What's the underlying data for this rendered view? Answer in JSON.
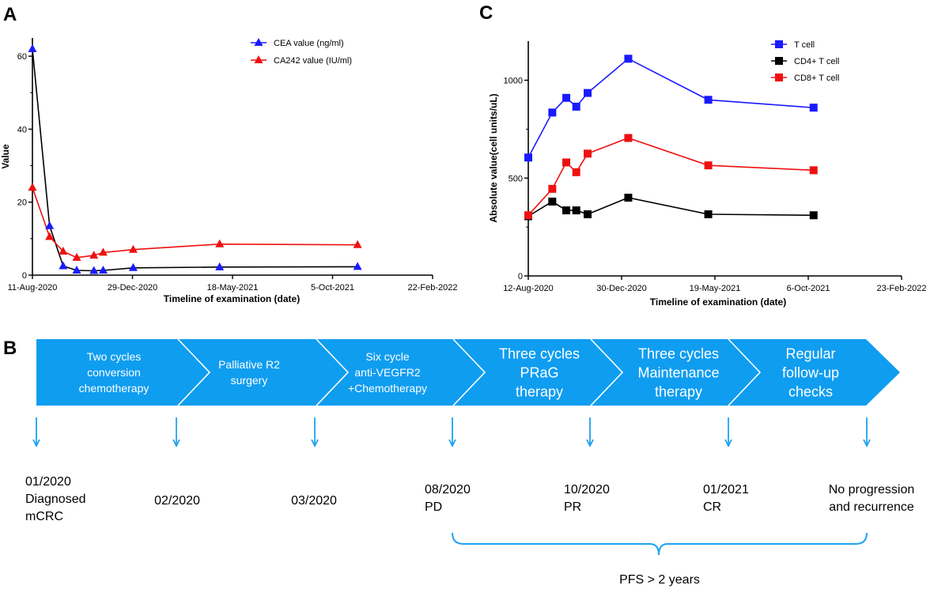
{
  "panels": [
    {
      "id": "A",
      "label": "A"
    },
    {
      "id": "B",
      "label": "B"
    },
    {
      "id": "C",
      "label": "C"
    }
  ],
  "colors": {
    "blue": "#1a1aff",
    "red": "#ee1111",
    "black": "#000000",
    "arrow": "#1fa2ef",
    "light_arrow": "#3ab0f2",
    "brace": "#1fa2ef"
  },
  "chart_data": [
    {
      "id": "A",
      "type": "line",
      "title": "",
      "xlabel": "Timeline of examination (date)",
      "ylabel": "Value",
      "x_ticks": [
        "11-Aug-2020",
        "29-Dec-2020",
        "18-May-2021",
        "5-Oct-2021",
        "22-Feb-2022"
      ],
      "x_ticks_days": [
        0,
        140,
        280,
        420,
        560
      ],
      "y_ticks": [
        0,
        20,
        40,
        60
      ],
      "ylim": [
        0,
        65
      ],
      "xlim": [
        0,
        560
      ],
      "legend_position": "top-right",
      "series": [
        {
          "name": "CEA value (ng/ml)",
          "color": "#1a1aff",
          "marker": "triangle",
          "x": [
            0,
            24,
            43,
            62,
            86,
            99,
            141,
            262,
            455
          ],
          "y": [
            62,
            13.5,
            2.5,
            1.3,
            1.2,
            1.3,
            2,
            2.2,
            2.3
          ]
        },
        {
          "name": "CA242 value (IU/ml)",
          "color": "#ee1111",
          "marker": "triangle",
          "x": [
            0,
            24,
            43,
            62,
            86,
            99,
            141,
            262,
            455
          ],
          "y": [
            24,
            10.5,
            6.5,
            4.8,
            5.4,
            6.2,
            7,
            8.5,
            8.3
          ]
        }
      ]
    },
    {
      "id": "C",
      "type": "line",
      "title": "",
      "xlabel": "Timeline of examination (date)",
      "ylabel": "Absolute value(cell units/uL)",
      "x_ticks": [
        "12-Aug-2020",
        "30-Dec-2020",
        "19-May-2021",
        "6-Oct-2021",
        "23-Feb-2022"
      ],
      "x_ticks_days": [
        0,
        140,
        280,
        420,
        560
      ],
      "y_ticks": [
        0,
        500,
        1000
      ],
      "ylim": [
        0,
        1200
      ],
      "xlim": [
        0,
        560
      ],
      "legend_position": "top-left",
      "series": [
        {
          "name": "T cell",
          "color": "#1a1aff",
          "marker": "square",
          "x": [
            0,
            36,
            57,
            72,
            89,
            150,
            270,
            428
          ],
          "y": [
            605,
            835,
            910,
            865,
            935,
            1110,
            900,
            860
          ]
        },
        {
          "name": "CD4+ T cell",
          "color": "#000000",
          "marker": "square",
          "x": [
            0,
            36,
            57,
            72,
            89,
            150,
            270,
            428
          ],
          "y": [
            305,
            380,
            335,
            335,
            315,
            400,
            315,
            310
          ]
        },
        {
          "name": "CD8+ T cell",
          "color": "#ee1111",
          "marker": "square",
          "x": [
            0,
            36,
            57,
            72,
            89,
            150,
            270,
            428
          ],
          "y": [
            310,
            445,
            580,
            530,
            625,
            705,
            565,
            540
          ]
        }
      ]
    }
  ],
  "timeline": {
    "stages": [
      {
        "lines": [
          "Two cycles",
          "conversion",
          "chemotherapy"
        ],
        "size": "small"
      },
      {
        "lines": [
          "Palliative R2",
          "surgery"
        ],
        "size": "small"
      },
      {
        "lines": [
          "Six cycle",
          "anti-VEGFR2",
          "+Chemotherapy"
        ],
        "size": "small"
      },
      {
        "lines": [
          "Three cycles",
          "PRaG",
          "therapy"
        ],
        "size": "large"
      },
      {
        "lines": [
          "Three cycles",
          "Maintenance",
          "therapy"
        ],
        "size": "large"
      },
      {
        "lines": [
          "Regular",
          "follow-up",
          "checks"
        ],
        "size": "large"
      }
    ],
    "events": [
      {
        "lines": [
          "01/2020",
          "Diagnosed",
          "mCRC"
        ]
      },
      {
        "lines": [
          "02/2020"
        ]
      },
      {
        "lines": [
          "03/2020"
        ]
      },
      {
        "lines": [
          "08/2020",
          "PD"
        ]
      },
      {
        "lines": [
          "10/2020",
          "PR"
        ]
      },
      {
        "lines": [
          "01/2021",
          "CR"
        ]
      },
      {
        "lines": [
          "No progression",
          "and recurrence"
        ]
      }
    ],
    "brace_label": "PFS > 2 years"
  }
}
